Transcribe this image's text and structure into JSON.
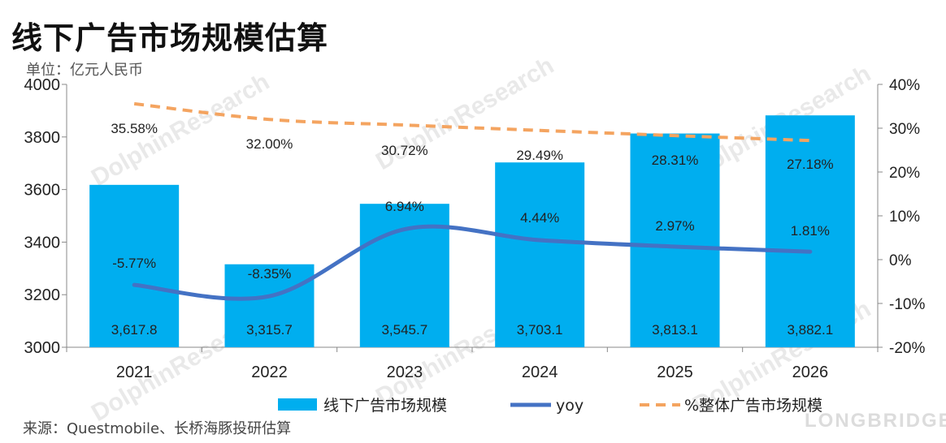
{
  "title": "线下广告市场规模估算",
  "unit_label": "单位：亿元人民币",
  "source": "来源：Questmobile、长桥海豚投研估算",
  "brand": "LONGBRIDGE",
  "watermark": "DolphinResearch",
  "chart_data": {
    "type": "bar",
    "categories": [
      "2021",
      "2022",
      "2023",
      "2024",
      "2025",
      "2026"
    ],
    "series": [
      {
        "name": "线下广告市场规模",
        "kind": "bar",
        "axis": "left",
        "color": "#00AEEF",
        "values": [
          3617.8,
          3315.7,
          3545.7,
          3703.1,
          3813.1,
          3882.1
        ],
        "labels": [
          "3,617.8",
          "3,315.7",
          "3,545.7",
          "3,703.1",
          "3,813.1",
          "3,882.1"
        ]
      },
      {
        "name": "yoy",
        "kind": "line",
        "axis": "right",
        "color": "#4472C4",
        "values": [
          -5.77,
          -8.35,
          6.94,
          4.44,
          2.97,
          1.81
        ],
        "labels": [
          "-5.77%",
          "-8.35%",
          "6.94%",
          "4.44%",
          "2.97%",
          "1.81%"
        ]
      },
      {
        "name": "%整体广告市场规模",
        "kind": "line-dashed",
        "axis": "right",
        "color": "#F4A460",
        "values": [
          35.58,
          32.0,
          30.72,
          29.49,
          28.31,
          27.18
        ],
        "labels": [
          "35.58%",
          "32.00%",
          "30.72%",
          "29.49%",
          "28.31%",
          "27.18%"
        ]
      }
    ],
    "y_left": {
      "min": 3000,
      "max": 4000,
      "ticks": [
        "3000",
        "3200",
        "3400",
        "3600",
        "3800",
        "4000"
      ]
    },
    "y_right": {
      "min": -20,
      "max": 40,
      "ticks": [
        "-20%",
        "-10%",
        "0%",
        "10%",
        "20%",
        "30%",
        "40%"
      ]
    },
    "legend_position": "bottom"
  }
}
